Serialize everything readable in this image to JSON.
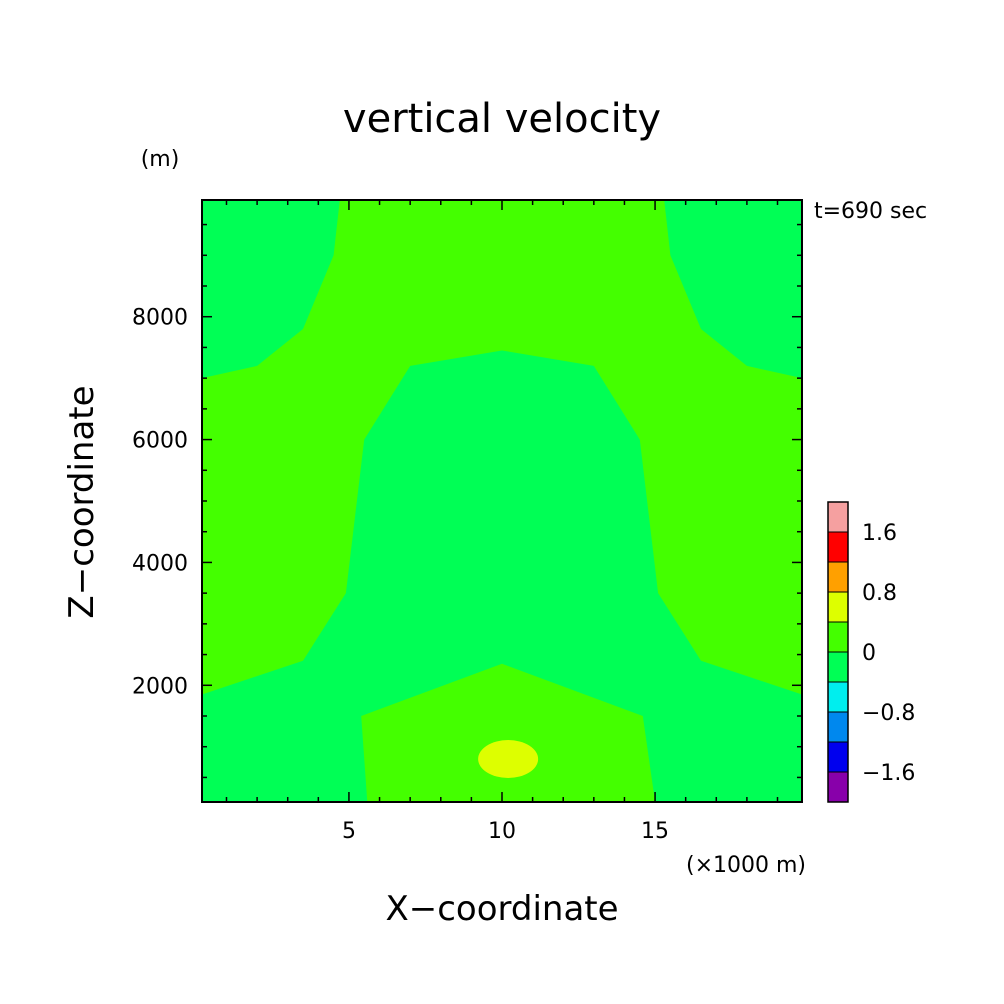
{
  "chart_data": {
    "type": "heatmap",
    "subtype": "filled-contour",
    "title": "vertical velocity",
    "time_label": "t=690 sec",
    "xlabel": "X−coordinate",
    "ylabel": "Z−coordinate",
    "x_unit": "(×1000 m)",
    "y_unit": "(m)",
    "xlim": [
      0.2,
      19.8
    ],
    "ylim": [
      100,
      9900
    ],
    "x_ticks": [
      5,
      10,
      15
    ],
    "x_tick_labels": [
      "5",
      "10",
      "15"
    ],
    "y_ticks": [
      2000,
      4000,
      6000,
      8000
    ],
    "y_tick_labels": [
      "2000",
      "4000",
      "6000",
      "8000"
    ],
    "colorbar": {
      "levels": [
        -2.0,
        -1.6,
        -1.2,
        -0.8,
        -0.4,
        0,
        0.4,
        0.8,
        1.2,
        1.6,
        2.0
      ],
      "colors": [
        "#8800aa",
        "#0000ee",
        "#0088ee",
        "#00eeee",
        "#00ff55",
        "#44ff00",
        "#ddff00",
        "#ffa000",
        "#ff0000",
        "#f5a0a0"
      ],
      "labels": [
        "1.6",
        "0.8",
        "0",
        "−0.8",
        "−1.6"
      ]
    },
    "regions": [
      {
        "level_range": [
          -0.4,
          0
        ],
        "color": "#00ff55",
        "desc": "corner lobes top-left and top-right",
        "boundary_left": [
          [
            0.2,
            7000
          ],
          [
            2,
            7200
          ],
          [
            3.5,
            7800
          ],
          [
            4.5,
            9000
          ],
          [
            4.7,
            9900
          ]
        ],
        "boundary_right": [
          [
            15.3,
            9900
          ],
          [
            15.5,
            9000
          ],
          [
            16.5,
            7800
          ],
          [
            18,
            7200
          ],
          [
            19.8,
            7000
          ]
        ]
      },
      {
        "level_range": [
          -0.4,
          0
        ],
        "color": "#00ff55",
        "desc": "central column and bottom band",
        "outer_points": [
          [
            10,
            7450
          ],
          [
            13,
            7200
          ],
          [
            14.5,
            6000
          ],
          [
            15.1,
            3500
          ],
          [
            16.5,
            2400
          ],
          [
            19.8,
            1850
          ],
          [
            19.8,
            100
          ],
          [
            15.0,
            100
          ],
          [
            14.6,
            1500
          ],
          [
            10,
            2350
          ],
          [
            5.4,
            1500
          ],
          [
            5.6,
            100
          ],
          [
            0.2,
            100
          ],
          [
            0.2,
            1850
          ],
          [
            3.5,
            2400
          ],
          [
            4.9,
            3500
          ],
          [
            5.5,
            6000
          ],
          [
            7,
            7200
          ]
        ]
      },
      {
        "level_range": [
          0.4,
          0.8
        ],
        "color": "#ddff00",
        "desc": "small positive blob",
        "center": [
          10.2,
          800
        ]
      }
    ]
  }
}
